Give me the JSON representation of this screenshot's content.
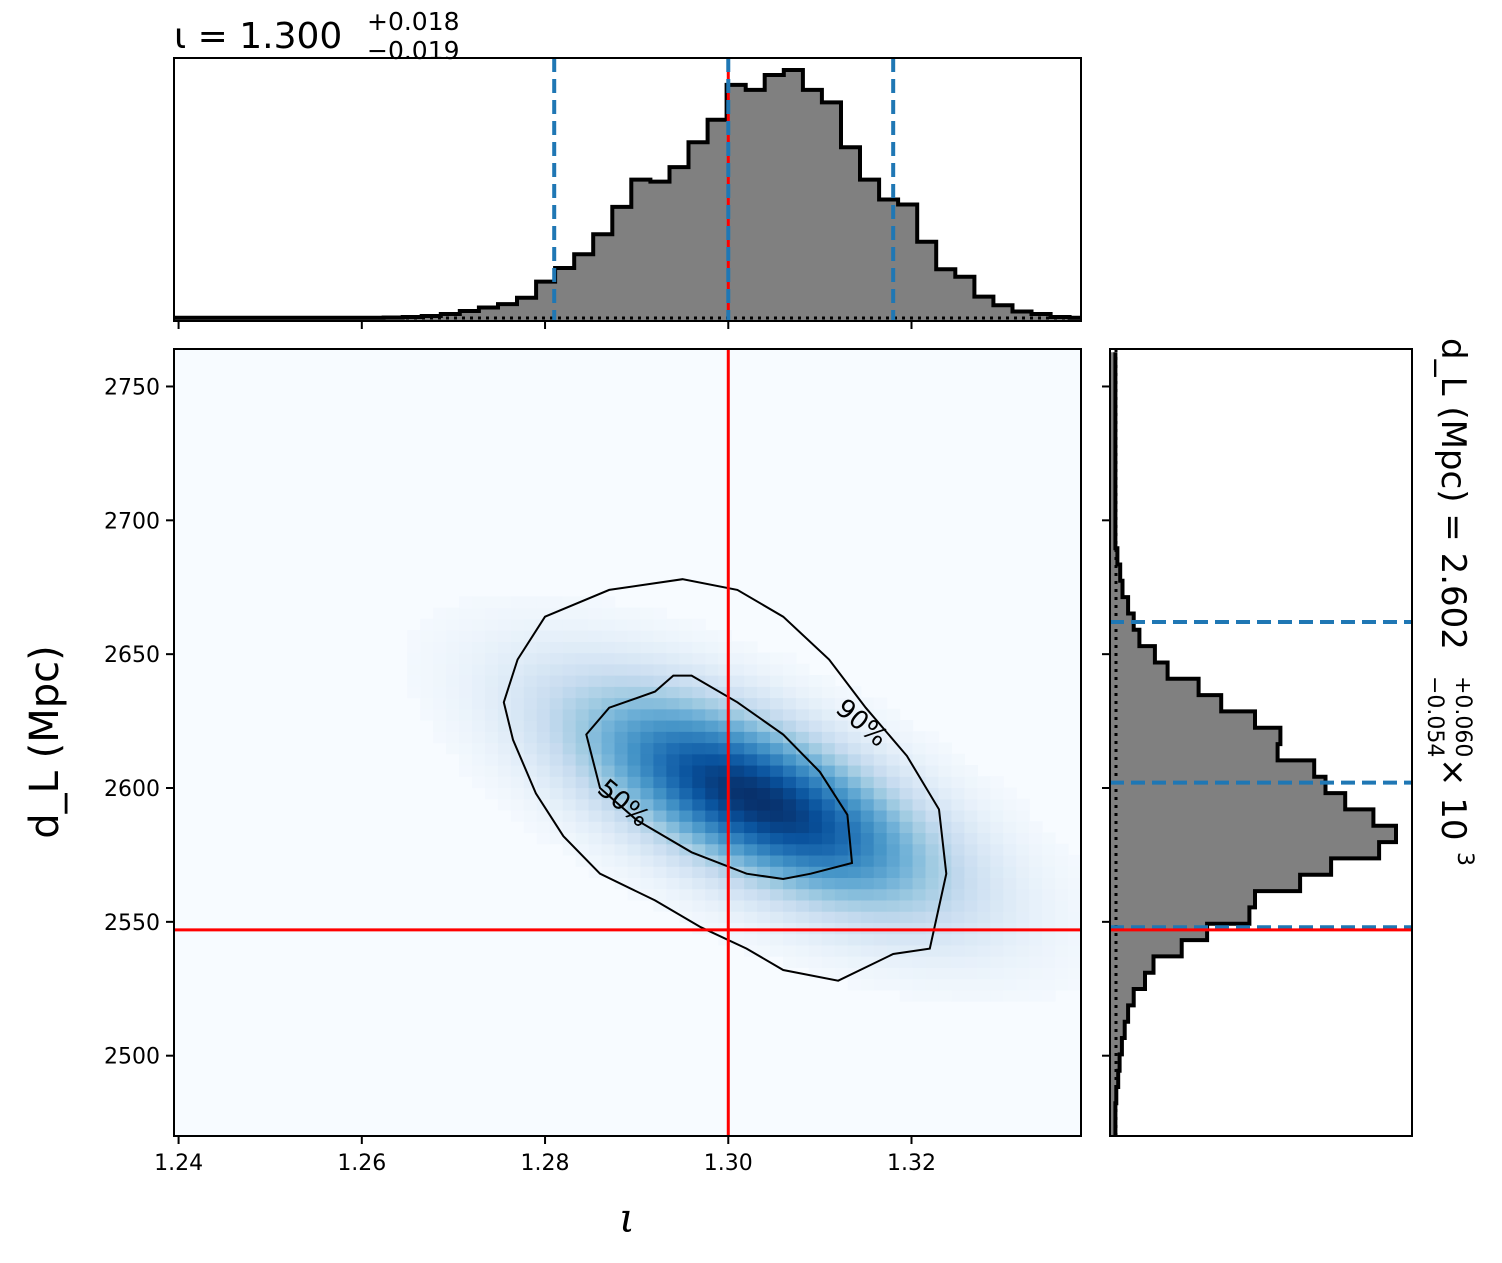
{
  "chart_data": {
    "type": "corner",
    "joint": {
      "type": "heatmap",
      "xlabel": "ι",
      "ylabel": "d_L (Mpc)",
      "xlim": [
        1.2395,
        1.3385
      ],
      "ylim": [
        2470,
        2764
      ],
      "xticks": [
        "1.24",
        "1.26",
        "1.28",
        "1.30",
        "1.32"
      ],
      "xtick_values": [
        1.24,
        1.26,
        1.28,
        1.3,
        1.32
      ],
      "yticks": [
        "2500",
        "2550",
        "2600",
        "2650",
        "2700",
        "2750"
      ],
      "ytick_values": [
        2500,
        2550,
        2600,
        2650,
        2700,
        2750
      ],
      "colormap": "Blues",
      "peak": {
        "x": 1.303,
        "y": 2596
      },
      "contours": [
        {
          "label": "50%",
          "label_at": {
            "x": 1.2885,
            "y": 2594
          },
          "rotation": 40,
          "points": [
            [
              1.296,
              2642
            ],
            [
              1.301,
              2632
            ],
            [
              1.306,
              2620
            ],
            [
              1.31,
              2606
            ],
            [
              1.313,
              2590
            ],
            [
              1.3135,
              2572
            ],
            [
              1.309,
              2568
            ],
            [
              1.306,
              2566
            ],
            [
              1.302,
              2568
            ],
            [
              1.296,
              2576
            ],
            [
              1.29,
              2588
            ],
            [
              1.286,
              2600
            ],
            [
              1.2845,
              2620
            ],
            [
              1.287,
              2630
            ],
            [
              1.292,
              2636
            ],
            [
              1.294,
              2642
            ]
          ]
        },
        {
          "label": "90%",
          "label_at": {
            "x": 1.3145,
            "y": 2624
          },
          "rotation": 40,
          "points": [
            [
              1.28,
              2664
            ],
            [
              1.287,
              2674
            ],
            [
              1.295,
              2678
            ],
            [
              1.301,
              2674
            ],
            [
              1.306,
              2664
            ],
            [
              1.311,
              2648
            ],
            [
              1.315,
              2630
            ],
            [
              1.3195,
              2612
            ],
            [
              1.323,
              2592
            ],
            [
              1.3238,
              2568
            ],
            [
              1.322,
              2540
            ],
            [
              1.318,
              2538
            ],
            [
              1.312,
              2528
            ],
            [
              1.306,
              2532
            ],
            [
              1.302,
              2540
            ],
            [
              1.297,
              2548
            ],
            [
              1.292,
              2558
            ],
            [
              1.286,
              2568
            ],
            [
              1.282,
              2582
            ],
            [
              1.279,
              2598
            ],
            [
              1.2765,
              2618
            ],
            [
              1.2755,
              2632
            ],
            [
              1.277,
              2648
            ]
          ]
        }
      ],
      "truth": {
        "x": 1.3,
        "y": 2547
      },
      "truth_color": "#ff0000"
    },
    "marginal_x": {
      "type": "histogram",
      "title": "ι = 1.300",
      "title_sup": "+0.018",
      "title_sub": "−0.019",
      "bin_edges_start": 1.2395,
      "bin_width": 0.00208,
      "heights": [
        0.005,
        0.005,
        0.005,
        0.005,
        0.005,
        0.005,
        0.005,
        0.005,
        0.005,
        0.005,
        0.005,
        0.006,
        0.008,
        0.012,
        0.02,
        0.032,
        0.046,
        0.06,
        0.085,
        0.15,
        0.205,
        0.26,
        0.34,
        0.45,
        0.56,
        0.552,
        0.61,
        0.71,
        0.8,
        0.94,
        0.92,
        0.98,
        1.0,
        0.92,
        0.87,
        0.69,
        0.56,
        0.48,
        0.46,
        0.31,
        0.2,
        0.17,
        0.09,
        0.055,
        0.03,
        0.02,
        0.008,
        0.005
      ],
      "quantiles": [
        1.281,
        1.3,
        1.318
      ],
      "median_color": "#ff0000",
      "quantile_color": "#1f77b4"
    },
    "marginal_y": {
      "type": "histogram",
      "orientation": "horizontal",
      "title": "d_L (Mpc) = 2.602",
      "title_sup": "+0.060",
      "title_sub": "−0.054",
      "title_suffix": "× 10",
      "title_exp": "3",
      "bin_edges_start": 2470,
      "bin_width": 6.1,
      "heights": [
        0.005,
        0.005,
        0.008,
        0.015,
        0.02,
        0.028,
        0.038,
        0.05,
        0.07,
        0.11,
        0.14,
        0.24,
        0.33,
        0.48,
        0.5,
        0.66,
        0.77,
        0.94,
        1.0,
        0.92,
        0.82,
        0.75,
        0.71,
        0.58,
        0.59,
        0.5,
        0.38,
        0.3,
        0.19,
        0.145,
        0.09,
        0.07,
        0.05,
        0.03,
        0.022,
        0.012,
        0.005,
        0.005,
        0.005,
        0.005,
        0.005,
        0.005,
        0.005,
        0.005,
        0.005,
        0.005,
        0.005,
        0.005
      ],
      "quantiles": [
        2548,
        2602,
        2662
      ],
      "truth": 2547,
      "truth_color": "#ff0000",
      "quantile_color": "#1f77b4"
    }
  }
}
